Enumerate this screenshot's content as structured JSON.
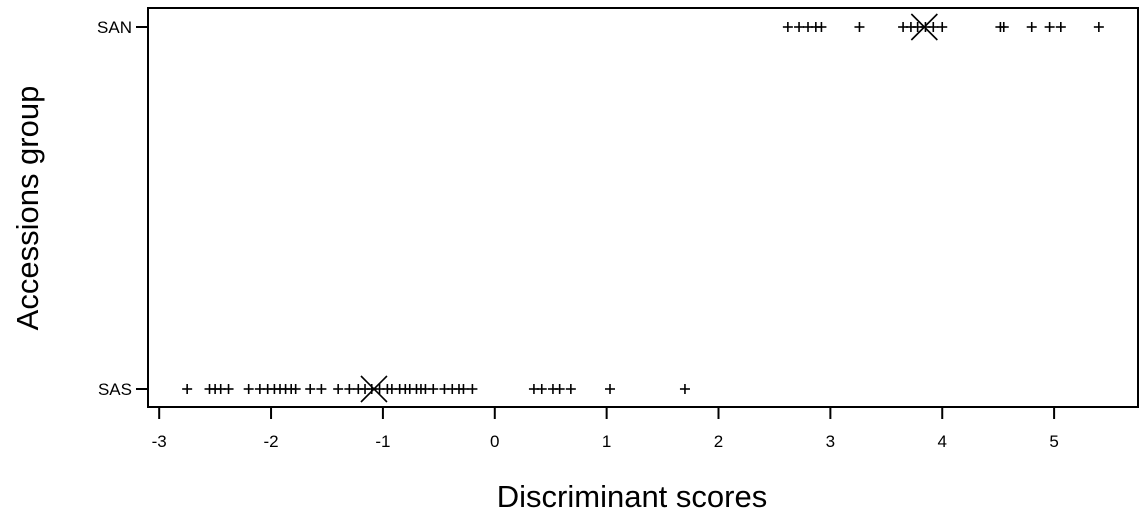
{
  "chart_data": {
    "type": "scatter",
    "title": "",
    "xlabel": "Discriminant scores",
    "ylabel": "Accessions group",
    "xlim": [
      -3.1,
      5.75
    ],
    "x_ticks": [
      -3,
      -2,
      -1,
      0,
      1,
      2,
      3,
      4,
      5
    ],
    "x_tick_labels": [
      "-3",
      "-2",
      "-1",
      "0",
      "1",
      "2",
      "3",
      "4",
      "5"
    ],
    "categories": [
      "SAN",
      "SAS"
    ],
    "grid": false,
    "legend": "none",
    "series": [
      {
        "category": "SAN",
        "marker": "plus",
        "x": [
          2.62,
          2.72,
          2.8,
          2.87,
          2.92,
          3.26,
          3.65,
          3.72,
          3.78,
          3.85,
          3.92,
          4.0,
          4.52,
          4.55,
          4.8,
          4.96,
          5.06,
          5.4
        ],
        "mean": 3.84
      },
      {
        "category": "SAS",
        "marker": "plus",
        "x": [
          -2.75,
          -2.55,
          -2.5,
          -2.45,
          -2.38,
          -2.2,
          -2.1,
          -2.03,
          -1.97,
          -1.92,
          -1.87,
          -1.82,
          -1.78,
          -1.65,
          -1.55,
          -1.4,
          -1.3,
          -1.22,
          -1.16,
          -1.1,
          -1.03,
          -0.96,
          -0.92,
          -0.85,
          -0.8,
          -0.76,
          -0.7,
          -0.66,
          -0.62,
          -0.55,
          -0.45,
          -0.38,
          -0.32,
          -0.28,
          -0.2,
          0.35,
          0.42,
          0.52,
          0.58,
          0.68,
          1.03,
          1.7
        ],
        "mean": -1.08
      }
    ]
  }
}
